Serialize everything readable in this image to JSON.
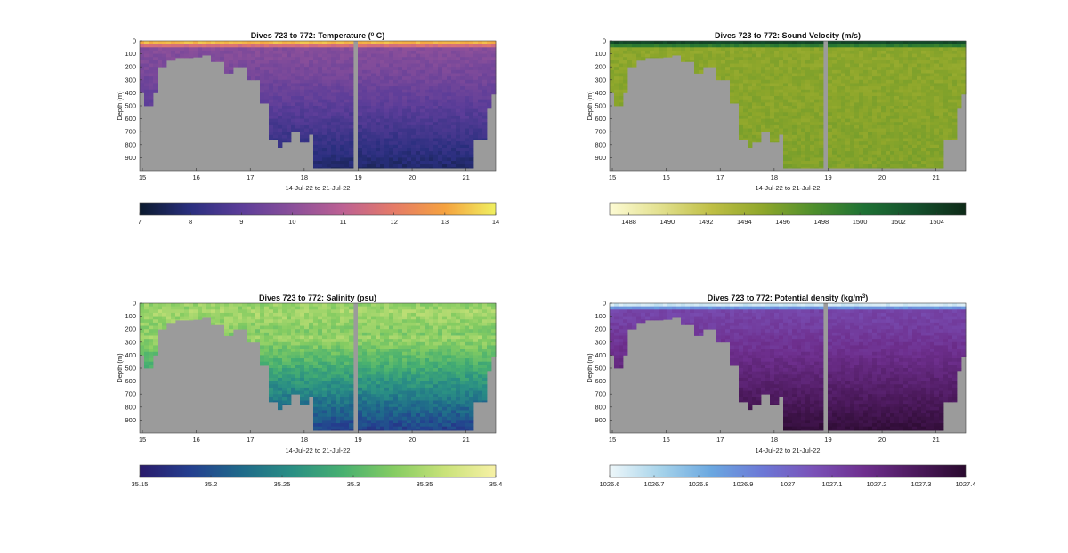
{
  "chart_data": [
    {
      "type": "heatmap",
      "title": "Dives 723 to 772: Temperature (",
      "title_sup": "o",
      "title_end": " C)",
      "xlabel": "14-Jul-22 to 21-Jul-22",
      "ylabel": "Depth (m)",
      "xlim": [
        14.95,
        21.55
      ],
      "ylim": [
        0,
        1000
      ],
      "xticks": [
        15,
        16,
        17,
        18,
        19,
        20,
        21
      ],
      "yticks": [
        0,
        100,
        200,
        300,
        400,
        500,
        600,
        700,
        800,
        900
      ],
      "colorbar": {
        "min": 7,
        "max": 14,
        "ticks": [
          7,
          8,
          9,
          10,
          11,
          12,
          13,
          14
        ],
        "tick_labels": [
          "7",
          "8",
          "9",
          "10",
          "11",
          "12",
          "13",
          "14"
        ]
      },
      "colormap": [
        "#0b1a2e",
        "#2a2f7f",
        "#5c3d99",
        "#8a4f9a",
        "#bd6193",
        "#e57b68",
        "#f5a23f",
        "#f0f060"
      ],
      "surface_value": 13.3,
      "deep_value": 7.6,
      "layer_value": 9.9
    },
    {
      "type": "heatmap",
      "title": "Dives 723 to 772: Sound Velocity (m/s)",
      "title_sup": "",
      "title_end": "",
      "xlabel": "14-Jul-22 to 21-Jul-22",
      "ylabel": "Depth (m)",
      "xlim": [
        14.95,
        21.55
      ],
      "ylim": [
        0,
        1000
      ],
      "xticks": [
        15,
        16,
        17,
        18,
        19,
        20,
        21
      ],
      "yticks": [
        0,
        100,
        200,
        300,
        400,
        500,
        600,
        700,
        800,
        900
      ],
      "colorbar": {
        "min": 1487,
        "max": 1505.5,
        "ticks": [
          1488,
          1490,
          1492,
          1494,
          1496,
          1498,
          1500,
          1502,
          1504
        ],
        "tick_labels": [
          "1488",
          "1490",
          "1492",
          "1494",
          "1496",
          "1498",
          "1500",
          "1502",
          "1504"
        ]
      },
      "colormap": [
        "#fdfbd4",
        "#e2e08e",
        "#bfbf45",
        "#8fa72b",
        "#4f8f2c",
        "#1e7134",
        "#14502c",
        "#0e2a18"
      ],
      "surface_value": 1503.5,
      "deep_value": 1495.5,
      "layer_value": 1495.0
    },
    {
      "type": "heatmap",
      "title": "Dives 723 to 772: Salinity (psu)",
      "title_sup": "",
      "title_end": "",
      "xlabel": "14-Jul-22 to 21-Jul-22",
      "ylabel": "Depth (m)",
      "xlim": [
        14.95,
        21.55
      ],
      "ylim": [
        0,
        1000
      ],
      "xticks": [
        15,
        16,
        17,
        18,
        19,
        20,
        21
      ],
      "yticks": [
        0,
        100,
        200,
        300,
        400,
        500,
        600,
        700,
        800,
        900
      ],
      "colorbar": {
        "min": 35.15,
        "max": 35.4,
        "ticks": [
          35.15,
          35.2,
          35.25,
          35.3,
          35.35,
          35.4
        ],
        "tick_labels": [
          "35.15",
          "35.2",
          "35.25",
          "35.3",
          "35.35",
          "35.4"
        ]
      },
      "colormap": [
        "#2a1b6b",
        "#243f8f",
        "#1f6a8a",
        "#2a8f84",
        "#48b070",
        "#85cc62",
        "#c9e279",
        "#f7f1a6"
      ],
      "surface_value": 35.33,
      "deep_value": 35.2,
      "layer_value": 35.36
    },
    {
      "type": "heatmap",
      "title": "Dives 723 to 772: Potential density (kg/m",
      "title_sup": "3",
      "title_end": ")",
      "xlabel": "14-Jul-22 to 21-Jul-22",
      "ylabel": "Depth (m)",
      "xlim": [
        14.95,
        21.55
      ],
      "ylim": [
        0,
        1000
      ],
      "xticks": [
        15,
        16,
        17,
        18,
        19,
        20,
        21
      ],
      "yticks": [
        0,
        100,
        200,
        300,
        400,
        500,
        600,
        700,
        800,
        900
      ],
      "colorbar": {
        "min": 1026.6,
        "max": 1027.4,
        "ticks": [
          1026.6,
          1026.7,
          1026.8,
          1026.9,
          1027,
          1027.1,
          1027.2,
          1027.3,
          1027.4
        ],
        "tick_labels": [
          "1026.6",
          "1026.7",
          "1026.8",
          "1026.9",
          "1027",
          "1027.1",
          "1027.2",
          "1027.3",
          "1027.4"
        ]
      },
      "colormap": [
        "#eef7fa",
        "#a6d3ea",
        "#6aa7e0",
        "#6c78d6",
        "#7a52b8",
        "#6e2f8e",
        "#4d1a5e",
        "#2a0a2e"
      ],
      "surface_value": 1026.65,
      "deep_value": 1027.38,
      "layer_value": 1027.1
    }
  ]
}
